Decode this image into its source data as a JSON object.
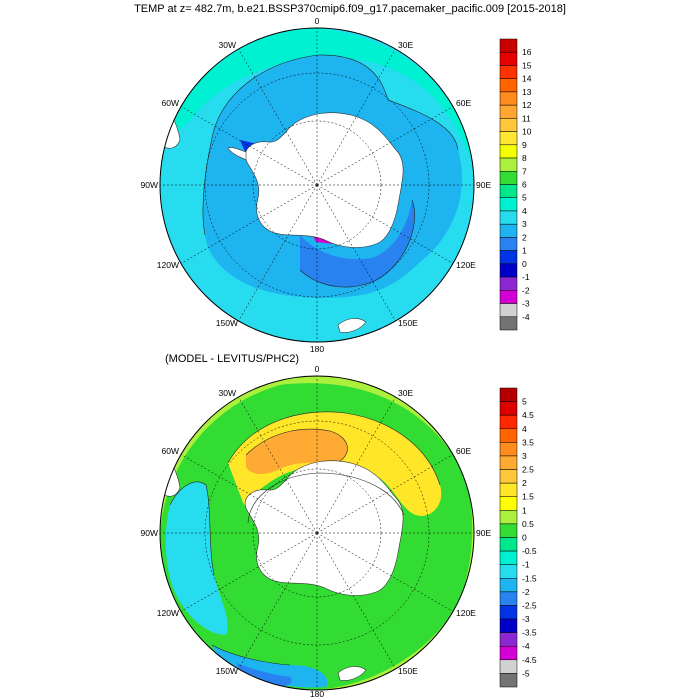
{
  "title": "TEMP at z= 482.7m, b.e21.BSSP370cmip6.f09_g17.pacemaker_pacific.009 [2015-2018]",
  "subtitle": "(MODEL - LEVITUS/PHC2)",
  "longitude_labels": [
    "0",
    "30E",
    "60E",
    "90E",
    "120E",
    "150E",
    "180",
    "150W",
    "120W",
    "90W",
    "60W",
    "30W"
  ],
  "top_map": {
    "colorbar": {
      "labels": [
        "16",
        "15",
        "14",
        "13",
        "12",
        "11",
        "10",
        "9",
        "8",
        "7",
        "6",
        "5",
        "4",
        "3",
        "2",
        "1",
        "0",
        "-1",
        "-2",
        "-3",
        "-4"
      ],
      "colors": [
        "#c80000",
        "#e60000",
        "#ff3200",
        "#ff6400",
        "#ff8c1e",
        "#ffa532",
        "#ffc83c",
        "#ffe632",
        "#f5ff00",
        "#aaf03c",
        "#32dc32",
        "#00e68c",
        "#00f0d2",
        "#28dcf0",
        "#1eb4f0",
        "#2882f0",
        "#0032e6",
        "#0000c8",
        "#8c28d2",
        "#d200d2",
        "#d2d2d2",
        "#737373"
      ]
    }
  },
  "bottom_map": {
    "colorbar": {
      "labels": [
        "5",
        "4.5",
        "4",
        "3.5",
        "3",
        "2.5",
        "2",
        "1.5",
        "1",
        "0.5",
        "0",
        "-0.5",
        "-1",
        "-1.5",
        "-2",
        "-2.5",
        "-3",
        "-3.5",
        "-4",
        "-4.5",
        "-5"
      ],
      "colors": [
        "#b40000",
        "#dc0000",
        "#ff2800",
        "#ff6400",
        "#ff8c1e",
        "#ffaa32",
        "#ffc83c",
        "#ffe628",
        "#ffff00",
        "#aaf03c",
        "#32dc32",
        "#00e68c",
        "#00f0d2",
        "#28dcf0",
        "#1eb4f0",
        "#2882f0",
        "#0032e6",
        "#0000c8",
        "#8c28d2",
        "#d200d2",
        "#d2d2d2",
        "#737373"
      ]
    }
  }
}
